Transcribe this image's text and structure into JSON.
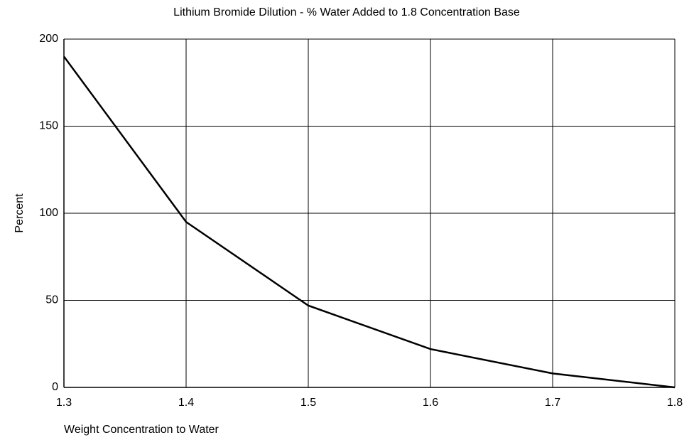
{
  "chart_data": {
    "type": "line",
    "title": "Lithium Bromide Dilution - % Water Added to 1.8 Concentration Base",
    "x_label": "Weight Concentration to Water",
    "y_label": "Percent",
    "x": [
      1.3,
      1.4,
      1.5,
      1.6,
      1.7,
      1.8
    ],
    "series": [
      {
        "name": "Percent",
        "color": "#000000",
        "values": [
          190,
          95,
          47,
          22,
          8,
          0
        ]
      }
    ],
    "xlim": [
      1.3,
      1.8
    ],
    "xticks": [
      1.3,
      1.4,
      1.5,
      1.6,
      1.7,
      1.8
    ],
    "ylim": [
      0,
      200
    ],
    "yticks": [
      0,
      50,
      100,
      150,
      200
    ],
    "grid": true
  }
}
